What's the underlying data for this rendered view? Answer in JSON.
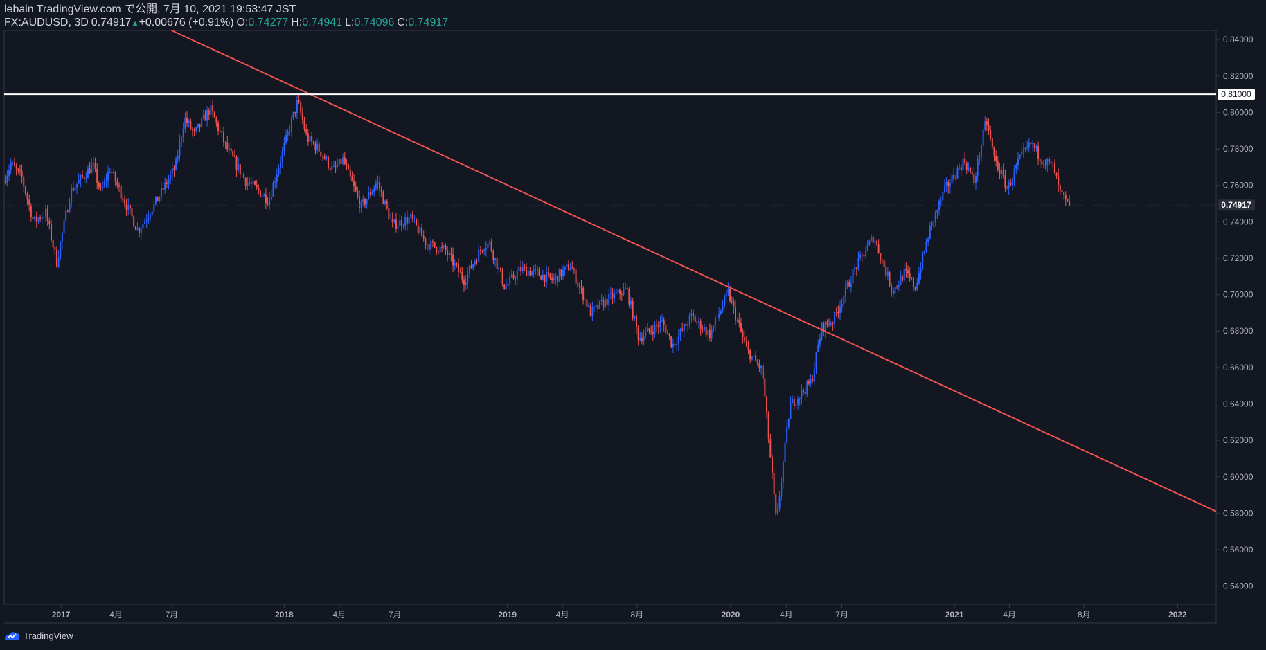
{
  "header": {
    "publish_line": "lebain TradingView.com で公開, 7月 10, 2021 19:53:47 JST",
    "symbol": "FX:AUDUSD, 3D",
    "last": "0.74917",
    "change": "+0.00676 (+0.91%)",
    "open_label": "O:",
    "open": "0.74277",
    "high_label": "H:",
    "high": "0.74941",
    "low_label": "L:",
    "low": "0.74096",
    "close_label": "C:",
    "close": "0.74917"
  },
  "footer": {
    "brand": "TradingView"
  },
  "colors": {
    "background": "#131722",
    "up": "#2962ff",
    "down": "#ef5350",
    "trendline": "#ef5350",
    "level_line": "#ffffff",
    "axis_text": "#b2b5be",
    "value_green": "#26a69a"
  },
  "chart_data": {
    "type": "candlestick",
    "title": "FX:AUDUSD, 3D",
    "xlabel": "",
    "ylabel": "",
    "ylim": [
      0.53,
      0.845
    ],
    "xlim": [
      "2016-09-30",
      "2022-03-05"
    ],
    "yticks": [
      0.54,
      0.56,
      0.58,
      0.6,
      0.62,
      0.64,
      0.66,
      0.68,
      0.7,
      0.72,
      0.74,
      0.76,
      0.78,
      0.8,
      0.82,
      0.84
    ],
    "ytick_labels": [
      "0.54000",
      "0.56000",
      "0.58000",
      "0.60000",
      "0.62000",
      "0.64000",
      "0.66000",
      "0.68000",
      "0.70000",
      "0.72000",
      "0.74000",
      "0.76000",
      "0.78000",
      "0.80000",
      "0.82000",
      "0.84000"
    ],
    "xticks": [
      {
        "date": "2017-01-01",
        "label": "2017",
        "bold": true
      },
      {
        "date": "2017-04-01",
        "label": "4月",
        "bold": false
      },
      {
        "date": "2017-07-01",
        "label": "7月",
        "bold": false
      },
      {
        "date": "2018-01-01",
        "label": "2018",
        "bold": true
      },
      {
        "date": "2018-04-01",
        "label": "4月",
        "bold": false
      },
      {
        "date": "2018-07-01",
        "label": "7月",
        "bold": false
      },
      {
        "date": "2019-01-01",
        "label": "2019",
        "bold": true
      },
      {
        "date": "2019-04-01",
        "label": "4月",
        "bold": false
      },
      {
        "date": "2019-08-01",
        "label": "8月",
        "bold": false
      },
      {
        "date": "2020-01-01",
        "label": "2020",
        "bold": true
      },
      {
        "date": "2020-04-01",
        "label": "4月",
        "bold": false
      },
      {
        "date": "2020-07-01",
        "label": "7月",
        "bold": false
      },
      {
        "date": "2021-01-01",
        "label": "2021",
        "bold": true
      },
      {
        "date": "2021-04-01",
        "label": "4月",
        "bold": false
      },
      {
        "date": "2021-08-01",
        "label": "8月",
        "bold": false
      },
      {
        "date": "2022-01-01",
        "label": "2022",
        "bold": true
      }
    ],
    "price_path": [
      [
        "2016-10-02",
        0.762
      ],
      [
        "2016-10-14",
        0.772
      ],
      [
        "2016-11-01",
        0.764
      ],
      [
        "2016-11-20",
        0.74
      ],
      [
        "2016-12-10",
        0.745
      ],
      [
        "2016-12-28",
        0.718
      ],
      [
        "2017-01-20",
        0.757
      ],
      [
        "2017-02-25",
        0.771
      ],
      [
        "2017-03-10",
        0.756
      ],
      [
        "2017-03-25",
        0.769
      ],
      [
        "2017-05-10",
        0.735
      ],
      [
        "2017-06-10",
        0.752
      ],
      [
        "2017-07-10",
        0.77
      ],
      [
        "2017-07-25",
        0.797
      ],
      [
        "2017-08-10",
        0.788
      ],
      [
        "2017-09-05",
        0.802
      ],
      [
        "2017-10-01",
        0.781
      ],
      [
        "2017-11-01",
        0.763
      ],
      [
        "2017-12-10",
        0.752
      ],
      [
        "2018-01-08",
        0.786
      ],
      [
        "2018-01-26",
        0.806
      ],
      [
        "2018-02-10",
        0.786
      ],
      [
        "2018-03-01",
        0.78
      ],
      [
        "2018-03-25",
        0.768
      ],
      [
        "2018-04-10",
        0.774
      ],
      [
        "2018-05-10",
        0.748
      ],
      [
        "2018-06-05",
        0.762
      ],
      [
        "2018-06-30",
        0.738
      ],
      [
        "2018-07-30",
        0.742
      ],
      [
        "2018-08-25",
        0.728
      ],
      [
        "2018-09-25",
        0.724
      ],
      [
        "2018-10-25",
        0.708
      ],
      [
        "2018-11-25",
        0.727
      ],
      [
        "2018-12-06",
        0.728
      ],
      [
        "2018-12-31",
        0.704
      ],
      [
        "2019-01-25",
        0.714
      ],
      [
        "2019-02-20",
        0.712
      ],
      [
        "2019-03-20",
        0.708
      ],
      [
        "2019-04-17",
        0.716
      ],
      [
        "2019-05-20",
        0.69
      ],
      [
        "2019-06-20",
        0.698
      ],
      [
        "2019-07-18",
        0.703
      ],
      [
        "2019-08-07",
        0.676
      ],
      [
        "2019-09-15",
        0.685
      ],
      [
        "2019-10-01",
        0.672
      ],
      [
        "2019-11-01",
        0.688
      ],
      [
        "2019-12-01",
        0.678
      ],
      [
        "2019-12-31",
        0.701
      ],
      [
        "2020-01-30",
        0.67
      ],
      [
        "2020-02-25",
        0.658
      ],
      [
        "2020-03-19",
        0.574
      ],
      [
        "2020-03-24",
        0.59
      ],
      [
        "2020-04-10",
        0.639
      ],
      [
        "2020-05-15",
        0.652
      ],
      [
        "2020-06-01",
        0.682
      ],
      [
        "2020-06-20",
        0.686
      ],
      [
        "2020-07-25",
        0.714
      ],
      [
        "2020-08-25",
        0.732
      ],
      [
        "2020-09-25",
        0.702
      ],
      [
        "2020-10-15",
        0.712
      ],
      [
        "2020-11-01",
        0.704
      ],
      [
        "2020-11-25",
        0.736
      ],
      [
        "2020-12-20",
        0.758
      ],
      [
        "2021-01-20",
        0.774
      ],
      [
        "2021-02-05",
        0.762
      ],
      [
        "2021-02-25",
        0.796
      ],
      [
        "2021-03-10",
        0.775
      ],
      [
        "2021-04-01",
        0.758
      ],
      [
        "2021-04-20",
        0.774
      ],
      [
        "2021-05-10",
        0.783
      ],
      [
        "2021-05-25",
        0.775
      ],
      [
        "2021-06-15",
        0.77
      ],
      [
        "2021-06-25",
        0.756
      ],
      [
        "2021-07-09",
        0.749
      ]
    ],
    "candle_interval_days": 3,
    "trendline": {
      "from": [
        "2017-07-01",
        0.845
      ],
      "to": [
        "2022-03-05",
        0.581
      ]
    },
    "horizontal_line": {
      "price": 0.81,
      "label": "0.81000"
    },
    "last_price": {
      "price": 0.74917,
      "label": "0.74917"
    }
  }
}
